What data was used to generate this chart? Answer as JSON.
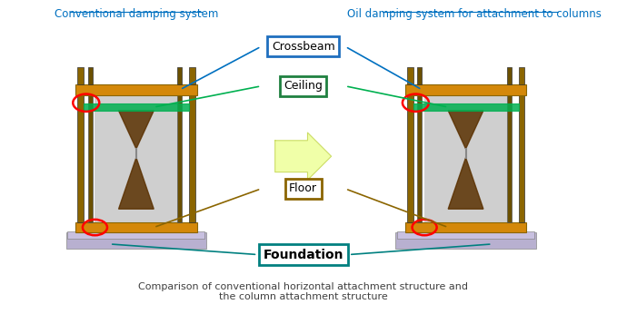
{
  "title_left": "Conventional damping system",
  "title_right": "Oil damping system for attachment to columns",
  "caption": "Comparison of conventional horizontal attachment structure and\nthe column attachment structure",
  "labels": {
    "crossbeam": "Crossbeam",
    "ceiling": "Ceiling",
    "floor": "Floor",
    "foundation": "Foundation"
  },
  "colors": {
    "background": "#ffffff",
    "title_left": "#0070c0",
    "title_right": "#0070c0",
    "caption": "#404040",
    "structure_brown": "#8B6500",
    "structure_orange": "#D4880A",
    "base_lavender": "#B8B0D0",
    "ceiling_green": "#00B050",
    "crossbeam_label_border": "#1F6FBE",
    "ceiling_label_border": "#1F8040",
    "floor_label_border": "#8B6500",
    "foundation_label_border": "#008080",
    "red_ellipse": "#FF0000",
    "pointer_blue": "#0070c0",
    "pointer_green": "#00B050"
  },
  "figsize": [
    6.9,
    3.57
  ],
  "dpi": 100
}
